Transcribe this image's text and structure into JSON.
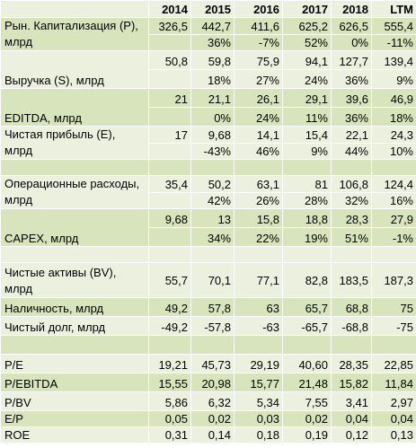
{
  "header": {
    "label": "",
    "years": [
      "2014",
      "2015",
      "2016",
      "2017",
      "2018",
      "LTM"
    ]
  },
  "rows": [
    {
      "label": "Рын. Капитализация (P), млрд",
      "values": [
        "326,5",
        "442,7",
        "411,6",
        "625,2",
        "626,5",
        "555,4"
      ],
      "growth": [
        "",
        "36%",
        "-7%",
        "52%",
        "0%",
        "-11%"
      ]
    },
    {
      "label": "Выручка (S), млрд",
      "values": [
        "50,8",
        "59,8",
        "75,9",
        "94,1",
        "127,7",
        "139,4"
      ],
      "growth": [
        "",
        "18%",
        "27%",
        "24%",
        "36%",
        "9%"
      ]
    },
    {
      "label": "EDITDA, млрд",
      "values": [
        "21",
        "21,1",
        "26,1",
        "29,1",
        "39,6",
        "46,9"
      ],
      "growth": [
        "",
        "0%",
        "24%",
        "11%",
        "36%",
        "18%"
      ]
    },
    {
      "label": "Чистая прибыль (E), млрд",
      "values": [
        "17",
        "9,68",
        "14,1",
        "15,4",
        "22,1",
        "24,3"
      ],
      "growth": [
        "",
        "-43%",
        "46%",
        "9%",
        "44%",
        "10%"
      ]
    },
    {
      "label": "Операционные расходы, млрд",
      "values": [
        "35,4",
        "50,2",
        "63,1",
        "81",
        "106,8",
        "124,4"
      ],
      "growth": [
        "",
        "42%",
        "26%",
        "28%",
        "32%",
        "16%"
      ]
    },
    {
      "label": "CAPEX, млрд",
      "values": [
        "9,68",
        "13",
        "15,8",
        "18,8",
        "28,3",
        "27,9"
      ],
      "growth": [
        "",
        "34%",
        "22%",
        "19%",
        "51%",
        "-1%"
      ]
    },
    {
      "label": "Чистые активы (BV), млрд",
      "values": [
        "55,7",
        "70,1",
        "77,1",
        "82,8",
        "183,5",
        "187,3"
      ]
    },
    {
      "label": "Наличность, млрд",
      "values": [
        "49,2",
        "57,8",
        "63",
        "65,7",
        "68,8",
        "75"
      ]
    },
    {
      "label": "Чистый долг, млрд",
      "values": [
        "-49,2",
        "-57,8",
        "-63",
        "-65,7",
        "-68,8",
        "-75"
      ]
    }
  ],
  "ratios": [
    {
      "label": "P/E",
      "values": [
        "19,21",
        "45,73",
        "29,19",
        "40,60",
        "28,35",
        "22,85"
      ]
    },
    {
      "label": "P/EBITDA",
      "values": [
        "15,55",
        "20,98",
        "15,77",
        "21,48",
        "15,82",
        "11,84"
      ]
    },
    {
      "label": "P/BV",
      "values": [
        "5,86",
        "6,32",
        "5,34",
        "7,55",
        "3,41",
        "2,97"
      ]
    },
    {
      "label": "E/P",
      "values": [
        "0,05",
        "0,02",
        "0,03",
        "0,02",
        "0,04",
        "0,04"
      ]
    },
    {
      "label": "ROE",
      "values": [
        "0,31",
        "0,14",
        "0,18",
        "0,19",
        "0,12",
        "0,13"
      ]
    }
  ],
  "colors": {
    "band_light": "#ebf1de",
    "band_dark": "#d8e4bc",
    "grid": "#ffffff"
  }
}
